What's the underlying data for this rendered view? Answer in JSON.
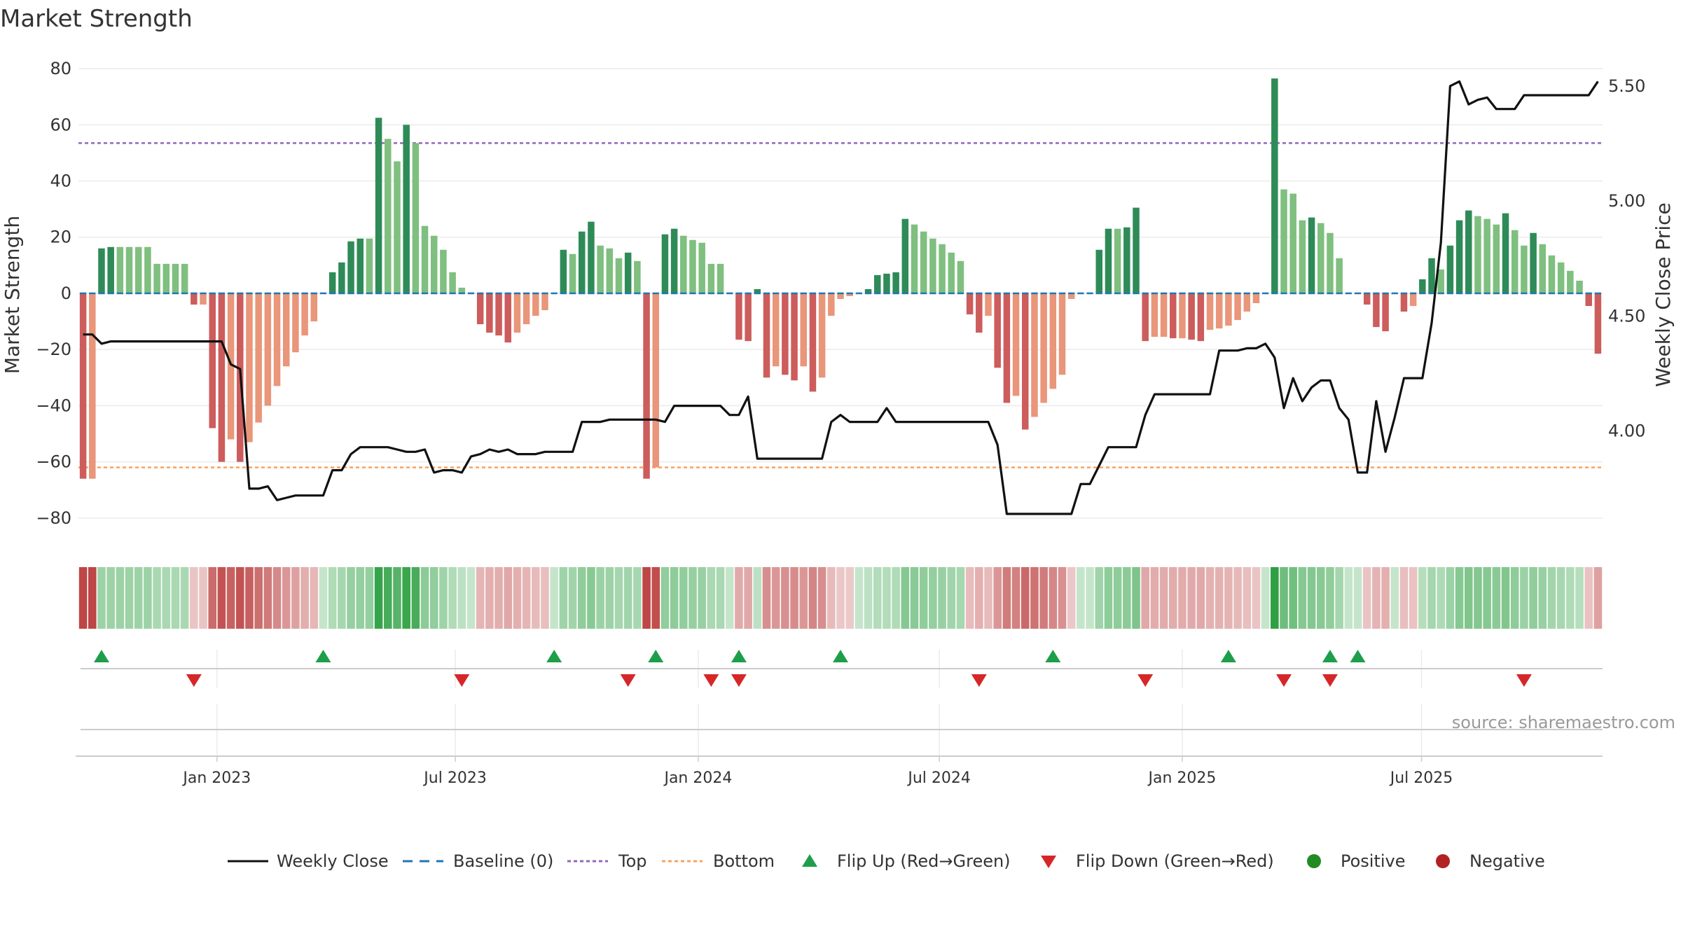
{
  "chart_data": {
    "type": "bar+line",
    "title": "Market Strength",
    "ylabel_left": "Market Strength",
    "ylabel_right": "Weekly Close Price",
    "ylim_left": [
      -90,
      82
    ],
    "yticks_left": [
      80,
      60,
      40,
      20,
      0,
      -20,
      -40,
      -60,
      -80
    ],
    "yticks_left_labels": [
      "80",
      "60",
      "40",
      "20",
      "0",
      "−20",
      "−40",
      "−60",
      "−80"
    ],
    "ylim_right": [
      3.5,
      5.6
    ],
    "yticks_right": [
      5.5,
      5.0,
      4.5,
      4.0
    ],
    "yticks_right_labels": [
      "5.50",
      "5.00",
      "4.50",
      "4.00"
    ],
    "top_threshold": 53.5,
    "bottom_threshold": -62,
    "x_start": "2022-09-30",
    "x_step_days": 7,
    "x_ticks": [
      {
        "label": "Jan 2023",
        "index": 14.5
      },
      {
        "label": "Jul 2023",
        "index": 40.3
      },
      {
        "label": "Jan 2024",
        "index": 66.6
      },
      {
        "label": "Jul 2024",
        "index": 92.7
      },
      {
        "label": "Jan 2025",
        "index": 119.0
      },
      {
        "label": "Jul 2025",
        "index": 144.9
      }
    ],
    "strength": [
      -66,
      -66,
      16,
      16.5,
      16.5,
      16.5,
      16.5,
      16.5,
      10.5,
      10.5,
      10.5,
      10.5,
      -4,
      -4,
      -48,
      -60,
      -52,
      -60,
      -53,
      -46,
      -40,
      -33,
      -26,
      -21,
      -15,
      -10,
      0,
      7.5,
      11,
      18.5,
      19.5,
      19.5,
      62.5,
      55,
      47,
      60,
      53.5,
      24,
      20.5,
      15.5,
      7.5,
      2,
      0,
      -11,
      -14,
      -15,
      -17.5,
      -14,
      -11,
      -8,
      -6,
      0,
      15.5,
      14,
      22,
      25.5,
      17,
      16,
      12.5,
      14.5,
      11.5,
      -66,
      -62,
      21,
      23,
      20.5,
      19,
      18,
      10.5,
      10.5,
      0,
      -16.5,
      -17,
      1.5,
      -30,
      -26,
      -29,
      -31,
      -26,
      -35,
      -30,
      -8,
      -2,
      -1,
      0,
      1.5,
      6.5,
      7,
      7.5,
      26.5,
      24.5,
      22,
      19.5,
      17.5,
      14.5,
      11.5,
      -7.5,
      -14,
      -8,
      -26.5,
      -39,
      -36.5,
      -48.5,
      -44,
      -39,
      -34,
      -29,
      -2,
      0,
      0,
      15.5,
      23,
      23,
      23.5,
      30.5,
      -17,
      -15.5,
      -15.5,
      -16,
      -16,
      -16.5,
      -17,
      -13,
      -12.5,
      -11.5,
      -9.5,
      -6.5,
      -3.5,
      0,
      76.5,
      37,
      35.5,
      26,
      27,
      25,
      21.5,
      12.5,
      0,
      0,
      -4,
      -12,
      -13.5,
      0,
      -6.5,
      -4.5,
      5,
      12.5,
      8.5,
      17,
      26,
      29.5,
      27.5,
      26.5,
      24.5,
      28.5,
      22.5,
      17,
      21.5,
      17.5,
      13.5,
      11,
      8,
      4.5,
      -4.5,
      -21.5
    ],
    "close": [
      4.42,
      4.42,
      4.38,
      4.39,
      4.39,
      4.39,
      4.39,
      4.39,
      4.39,
      4.39,
      4.39,
      4.39,
      4.39,
      4.39,
      4.39,
      4.39,
      4.29,
      4.27,
      3.75,
      3.75,
      3.76,
      3.7,
      3.71,
      3.72,
      3.72,
      3.72,
      3.72,
      3.83,
      3.83,
      3.9,
      3.93,
      3.93,
      3.93,
      3.93,
      3.92,
      3.91,
      3.91,
      3.92,
      3.82,
      3.83,
      3.83,
      3.82,
      3.89,
      3.9,
      3.92,
      3.91,
      3.92,
      3.9,
      3.9,
      3.9,
      3.91,
      3.91,
      3.91,
      3.91,
      4.04,
      4.04,
      4.04,
      4.05,
      4.05,
      4.05,
      4.05,
      4.05,
      4.05,
      4.04,
      4.11,
      4.11,
      4.11,
      4.11,
      4.11,
      4.11,
      4.07,
      4.07,
      4.15,
      3.88,
      3.88,
      3.88,
      3.88,
      3.88,
      3.88,
      3.88,
      3.88,
      4.04,
      4.07,
      4.04,
      4.04,
      4.04,
      4.04,
      4.1,
      4.04,
      4.04,
      4.04,
      4.04,
      4.04,
      4.04,
      4.04,
      4.04,
      4.04,
      4.04,
      4.04,
      3.94,
      3.64,
      3.64,
      3.64,
      3.64,
      3.64,
      3.64,
      3.64,
      3.64,
      3.77,
      3.77,
      3.85,
      3.93,
      3.93,
      3.93,
      3.93,
      4.07,
      4.16,
      4.16,
      4.16,
      4.16,
      4.16,
      4.16,
      4.16,
      4.35,
      4.35,
      4.35,
      4.36,
      4.36,
      4.38,
      4.32,
      4.1,
      4.23,
      4.13,
      4.19,
      4.22,
      4.22,
      4.1,
      4.05,
      3.82,
      3.82,
      4.13,
      3.91,
      4.06,
      4.23,
      4.23,
      4.23,
      4.47,
      4.82,
      5.5,
      5.52,
      5.42,
      5.44,
      5.45,
      5.4,
      5.4,
      5.4,
      5.46,
      5.46,
      5.46,
      5.46,
      5.46,
      5.46,
      5.46,
      5.46,
      5.52
    ],
    "flip_up_indices": [
      2,
      26,
      51,
      62,
      71,
      82,
      105,
      124,
      135,
      138
    ],
    "flip_down_indices": [
      12,
      41,
      59,
      68,
      71,
      97,
      115,
      130,
      135,
      156
    ],
    "legend": [
      {
        "key": "weekly_close",
        "label": "Weekly Close"
      },
      {
        "key": "baseline",
        "label": "Baseline (0)"
      },
      {
        "key": "top",
        "label": "Top"
      },
      {
        "key": "bottom",
        "label": "Bottom"
      },
      {
        "key": "flip_up",
        "label": "Flip Up (Red→Green)"
      },
      {
        "key": "flip_down",
        "label": "Flip Down (Green→Red)"
      },
      {
        "key": "positive",
        "label": "Positive"
      },
      {
        "key": "negative",
        "label": "Negative"
      }
    ],
    "source": "source: sharemaestro.com",
    "colors": {
      "pos_strong": "#2e8b57",
      "pos_light": "#7fbf7f",
      "neg_strong": "#cd5c5c",
      "neg_light": "#e9967a",
      "line": "#111111",
      "baseline": "#1f77b4",
      "top": "#9467bd",
      "bottom": "#f4a460",
      "flip_up": "#1e9e4a",
      "flip_down": "#d62728",
      "positive_dot": "#228b22",
      "negative_dot": "#b22222"
    }
  }
}
